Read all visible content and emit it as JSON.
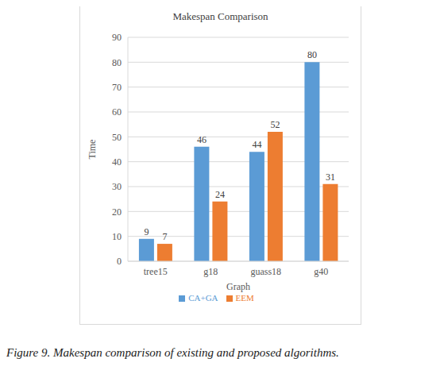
{
  "chart_data": {
    "type": "bar",
    "title": "Makespan Comparison",
    "x_label": "Graph",
    "y_label": "Time",
    "categories": [
      "tree15",
      "g18",
      "guass18",
      "g40"
    ],
    "series": [
      {
        "name": "CA+GA",
        "color": "#5b9bd5",
        "values": [
          9,
          46,
          44,
          80
        ]
      },
      {
        "name": "EEM",
        "color": "#ed7d31",
        "values": [
          7,
          24,
          52,
          31
        ]
      }
    ],
    "ylim": [
      0,
      90
    ],
    "yticks": [
      0,
      10,
      20,
      30,
      40,
      50,
      60,
      70,
      80,
      90
    ],
    "grid": true,
    "legend": "bottom",
    "data_labels": true
  },
  "caption": "Figure 9. Makespan comparison of existing and proposed algorithms."
}
